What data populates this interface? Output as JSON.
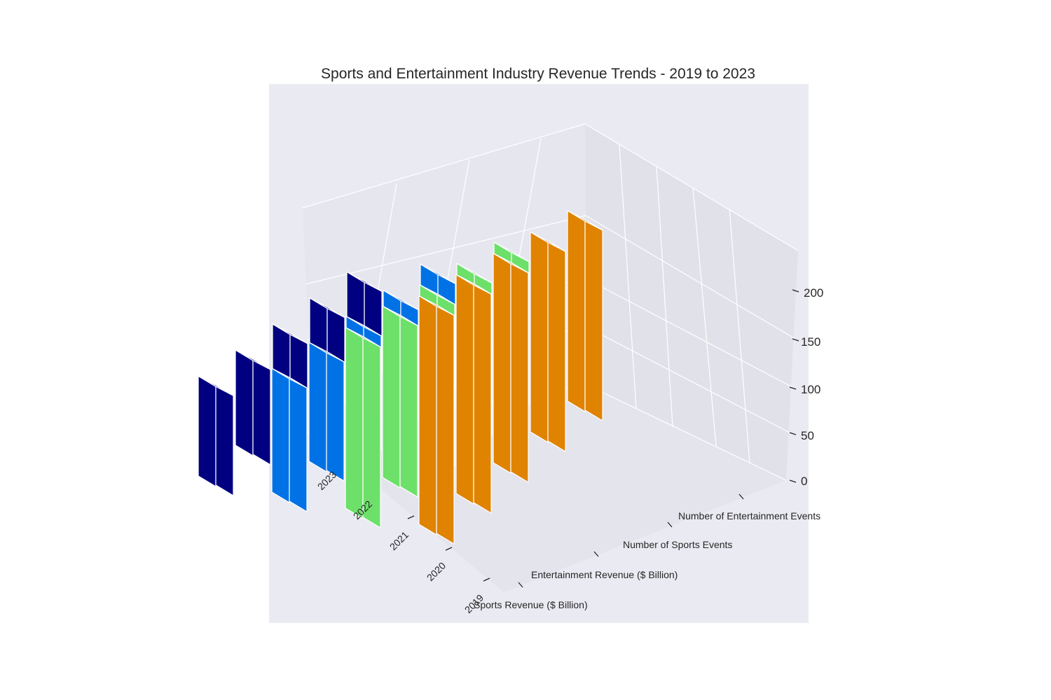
{
  "chart_data": {
    "type": "bar3d",
    "title": "Sports and Entertainment Industry Revenue Trends - 2019 to 2023",
    "years": [
      "2019",
      "2020",
      "2021",
      "2022",
      "2023"
    ],
    "series": [
      {
        "name": "Sports Revenue ($ Billion)",
        "values": [
          85,
          90,
          95,
          100,
          105
        ],
        "color": "#000080"
      },
      {
        "name": "Entertainment Revenue ($ Billion)",
        "values": [
          110,
          115,
          120,
          125,
          130
        ],
        "color": "#0072e5"
      },
      {
        "name": "Number of Sports Events",
        "values": [
          150,
          160,
          170,
          180,
          190
        ],
        "color": "#6de06a"
      },
      {
        "name": "Number of Entertainment Events",
        "values": [
          200,
          210,
          220,
          230,
          240
        ],
        "color": "#e08300"
      }
    ],
    "zlim": [
      0,
      240
    ],
    "zticks": [
      0,
      50,
      100,
      150,
      200
    ],
    "grid": true
  }
}
